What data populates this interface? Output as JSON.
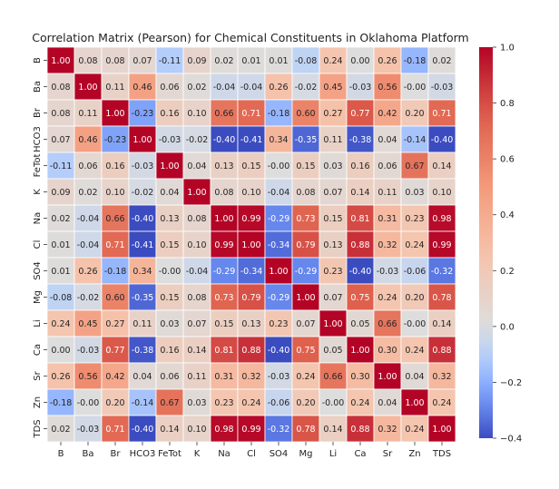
{
  "chart_data": {
    "type": "heatmap",
    "title": "Correlation Matrix (Pearson) for Chemical Constituents in Oklahoma Platform",
    "xlabel": "",
    "ylabel": "",
    "labels": [
      "B",
      "Ba",
      "Br",
      "HCO3",
      "FeTot",
      "K",
      "Na",
      "Cl",
      "SO4",
      "Mg",
      "Li",
      "Ca",
      "Sr",
      "Zn",
      "TDS"
    ],
    "colormap": "coolwarm",
    "vmin": -0.4,
    "vmax": 1.0,
    "colorbar_ticks": [
      -0.4,
      -0.2,
      0.0,
      0.2,
      0.4,
      0.6,
      0.8,
      1.0
    ],
    "colorbar_tick_labels": [
      "−0.4",
      "−0.2",
      "0.0",
      "0.2",
      "0.4",
      "0.6",
      "0.8",
      "1.0"
    ],
    "matrix": [
      [
        1.0,
        0.08,
        0.08,
        0.07,
        -0.11,
        0.09,
        0.02,
        0.01,
        0.01,
        -0.08,
        0.24,
        0.0,
        0.26,
        -0.18,
        0.02
      ],
      [
        0.08,
        1.0,
        0.11,
        0.46,
        0.06,
        0.02,
        -0.04,
        -0.04,
        0.26,
        -0.02,
        0.45,
        -0.03,
        0.56,
        -0.0,
        -0.03
      ],
      [
        0.08,
        0.11,
        1.0,
        -0.23,
        0.16,
        0.1,
        0.66,
        0.71,
        -0.18,
        0.6,
        0.27,
        0.77,
        0.42,
        0.2,
        0.71
      ],
      [
        0.07,
        0.46,
        -0.23,
        1.0,
        -0.03,
        -0.02,
        -0.4,
        -0.41,
        0.34,
        -0.35,
        0.11,
        -0.38,
        0.04,
        -0.14,
        -0.4
      ],
      [
        -0.11,
        0.06,
        0.16,
        -0.03,
        1.0,
        0.04,
        0.13,
        0.15,
        -0.0,
        0.15,
        0.03,
        0.16,
        0.06,
        0.67,
        0.14
      ],
      [
        0.09,
        0.02,
        0.1,
        -0.02,
        0.04,
        1.0,
        0.08,
        0.1,
        -0.04,
        0.08,
        0.07,
        0.14,
        0.11,
        0.03,
        0.1
      ],
      [
        0.02,
        -0.04,
        0.66,
        -0.4,
        0.13,
        0.08,
        1.0,
        0.99,
        -0.29,
        0.73,
        0.15,
        0.81,
        0.31,
        0.23,
        0.98
      ],
      [
        0.01,
        -0.04,
        0.71,
        -0.41,
        0.15,
        0.1,
        0.99,
        1.0,
        -0.34,
        0.79,
        0.13,
        0.88,
        0.32,
        0.24,
        0.99
      ],
      [
        0.01,
        0.26,
        -0.18,
        0.34,
        -0.0,
        -0.04,
        -0.29,
        -0.34,
        1.0,
        -0.29,
        0.23,
        -0.4,
        -0.03,
        -0.06,
        -0.32
      ],
      [
        -0.08,
        -0.02,
        0.6,
        -0.35,
        0.15,
        0.08,
        0.73,
        0.79,
        -0.29,
        1.0,
        0.07,
        0.75,
        0.24,
        0.2,
        0.78
      ],
      [
        0.24,
        0.45,
        0.27,
        0.11,
        0.03,
        0.07,
        0.15,
        0.13,
        0.23,
        0.07,
        1.0,
        0.05,
        0.66,
        -0.0,
        0.14
      ],
      [
        0.0,
        -0.03,
        0.77,
        -0.38,
        0.16,
        0.14,
        0.81,
        0.88,
        -0.4,
        0.75,
        0.05,
        1.0,
        0.3,
        0.24,
        0.88
      ],
      [
        0.26,
        0.56,
        0.42,
        0.04,
        0.06,
        0.11,
        0.31,
        0.32,
        -0.03,
        0.24,
        0.66,
        0.3,
        1.0,
        0.04,
        0.32
      ],
      [
        -0.18,
        -0.0,
        0.2,
        -0.14,
        0.67,
        0.03,
        0.23,
        0.24,
        -0.06,
        0.2,
        -0.0,
        0.24,
        0.04,
        1.0,
        0.24
      ],
      [
        0.02,
        -0.03,
        0.71,
        -0.4,
        0.14,
        0.1,
        0.98,
        0.99,
        -0.32,
        0.78,
        0.14,
        0.88,
        0.32,
        0.24,
        1.0
      ]
    ]
  }
}
